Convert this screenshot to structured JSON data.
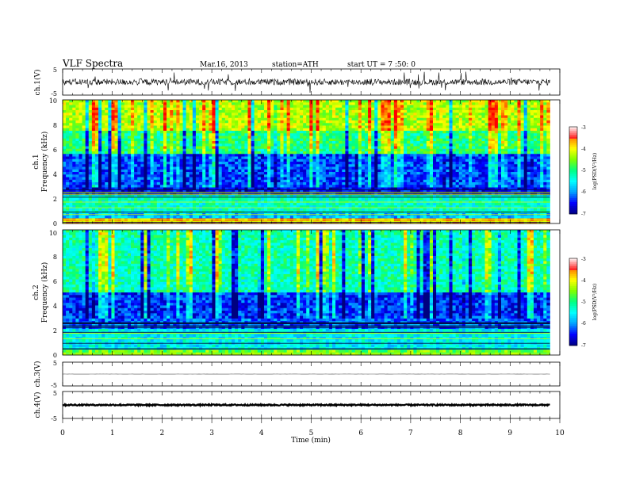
{
  "header": {
    "title": "VLF Spectra",
    "date": "Mar.16, 2013",
    "station": "station=ATH",
    "start": "start UT = 7 :50: 0"
  },
  "panels": {
    "ch1_wave": {
      "ylabel": "ch.1(V)",
      "yticks": [
        "5",
        "-5"
      ]
    },
    "ch1_spec": {
      "ylabel_top": "ch.1",
      "ylabel_bottom": "Frequency (kHz)",
      "yticks": [
        "10",
        "8",
        "6",
        "4",
        "2",
        "0"
      ]
    },
    "ch2_spec": {
      "ylabel_top": "ch.2",
      "ylabel_bottom": "Frequency (kHz)",
      "yticks": [
        "10",
        "8",
        "6",
        "4",
        "2",
        "0"
      ]
    },
    "ch3_wave": {
      "ylabel": "ch.3(V)",
      "yticks": [
        "5",
        "-5"
      ]
    },
    "ch4_wave": {
      "ylabel": "ch.4(V)",
      "yticks": [
        "5",
        "-5"
      ]
    }
  },
  "colorbar": {
    "label": "log(PSD(V²/Hz)",
    "ticks": [
      "-3",
      "-4",
      "-5",
      "-6",
      "-7"
    ],
    "colors": [
      "#000080",
      "#0000ff",
      "#00a0ff",
      "#00ffff",
      "#00ff80",
      "#80ff00",
      "#ffff00",
      "#ff8000",
      "#ff0000",
      "#ffffff"
    ]
  },
  "xaxis": {
    "label": "Time (min)",
    "ticks": [
      "0",
      "1",
      "2",
      "3",
      "4",
      "5",
      "6",
      "7",
      "8",
      "9",
      "10"
    ]
  },
  "chart_data": {
    "type": "heatmap",
    "title": "VLF Spectra",
    "xlabel": "Time (min)",
    "xlim": [
      0,
      10
    ],
    "data_end_min": 9.8,
    "channels": [
      {
        "name": "ch.1",
        "ylabel": "Frequency (kHz)",
        "ylim": [
          0,
          10
        ],
        "bands": [
          {
            "from": 0.0,
            "to": 0.4,
            "level": -3.6
          },
          {
            "from": 0.4,
            "to": 0.8,
            "level": -5.8
          },
          {
            "from": 0.8,
            "to": 2.2,
            "level": -5.3
          },
          {
            "from": 2.2,
            "to": 3.0,
            "level": -6.6
          },
          {
            "from": 3.0,
            "to": 5.7,
            "level": -6.3
          },
          {
            "from": 5.7,
            "to": 7.5,
            "level": -5.0
          },
          {
            "from": 7.5,
            "to": 10.0,
            "level": -4.3
          }
        ]
      },
      {
        "name": "ch.2",
        "ylabel": "Frequency (kHz)",
        "ylim": [
          0,
          10
        ],
        "bands": [
          {
            "from": 0.0,
            "to": 0.5,
            "level": -4.6
          },
          {
            "from": 0.5,
            "to": 2.0,
            "level": -5.5
          },
          {
            "from": 2.0,
            "to": 3.0,
            "level": -6.2
          },
          {
            "from": 3.0,
            "to": 5.0,
            "level": -6.4
          },
          {
            "from": 5.0,
            "to": 10.0,
            "level": -5.2
          }
        ]
      }
    ],
    "colorbar": {
      "label": "log(PSD(V²/Hz)",
      "range": [
        -7,
        -3
      ]
    },
    "waveforms": [
      {
        "name": "ch.1(V)",
        "ylim": [
          -5,
          5
        ],
        "amplitude": 1.2,
        "spikes": true
      },
      {
        "name": "ch.3(V)",
        "ylim": [
          -5,
          5
        ],
        "amplitude": 0.05,
        "spikes": false
      },
      {
        "name": "ch.4(V)",
        "ylim": [
          -5,
          5
        ],
        "amplitude": 0.25,
        "spikes": false
      }
    ]
  }
}
